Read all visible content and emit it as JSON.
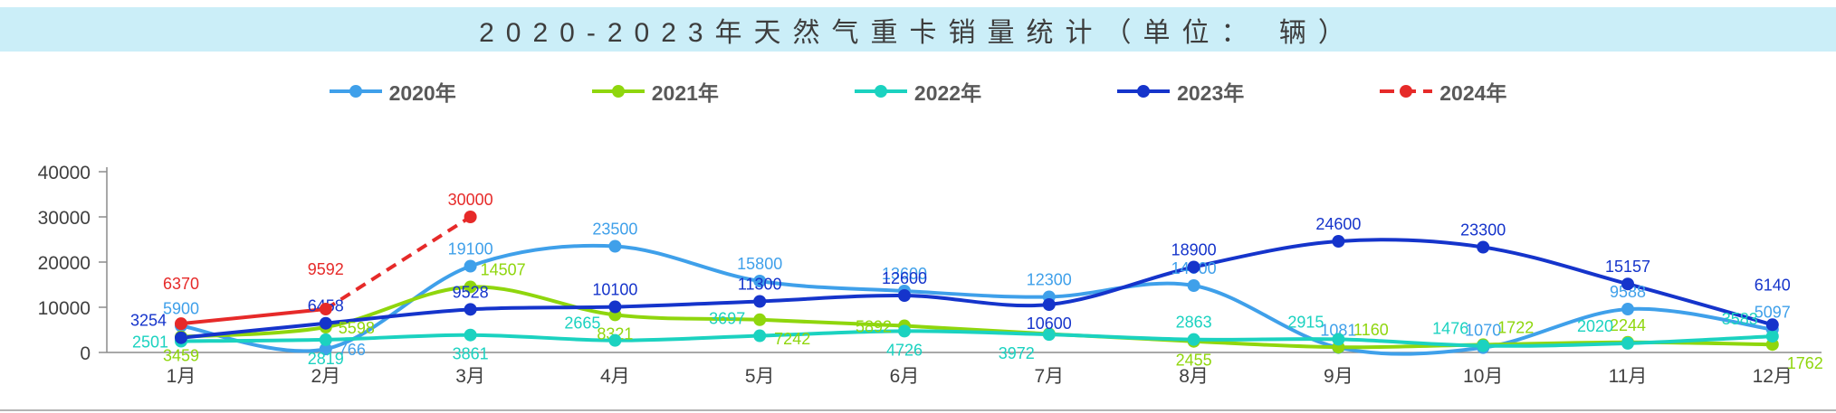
{
  "title": "2020-2023年天然气重卡销量统计（单位： 辆）",
  "chart_data": {
    "type": "line",
    "title": "2020-2023年天然气重卡销量统计（单位： 辆）",
    "unit": "辆",
    "categories": [
      "1月",
      "2月",
      "3月",
      "4月",
      "5月",
      "6月",
      "7月",
      "8月",
      "9月",
      "10月",
      "11月",
      "12月"
    ],
    "xlabel": "",
    "ylabel": "",
    "y_ticks": [
      "0",
      "10000",
      "20000",
      "30000",
      "40000"
    ],
    "ylim": [
      0,
      40000
    ],
    "grid": false,
    "smooth": true,
    "legend_position": "top",
    "series": [
      {
        "name": "2020年",
        "color": "#3fa0ea",
        "values": [
          5900,
          766,
          19100,
          23500,
          15800,
          13600,
          12300,
          14800,
          1081,
          1070,
          9588,
          5097
        ],
        "labels": [
          "5900",
          "766",
          "19100",
          "23500",
          "15800",
          "13600",
          "12300",
          "14800",
          "1081",
          "1070",
          "9588",
          "5097"
        ],
        "label_pos": [
          "top",
          "right",
          "top",
          "top",
          "top",
          "top",
          "top",
          "top",
          "top",
          "top",
          "top",
          "top"
        ]
      },
      {
        "name": "2021年",
        "color": "#8fd60d",
        "values": [
          3459,
          5598,
          14507,
          8321,
          7242,
          5892,
          4100,
          2455,
          1160,
          1722,
          2244,
          1762
        ],
        "labels": [
          "3459",
          "5598",
          "14507",
          "8321",
          "7242",
          "5892",
          "",
          "2455",
          "1160",
          "1722",
          "2244",
          "1762"
        ],
        "label_pos": [
          "bottom",
          "right",
          "top-right",
          "bottom",
          "bottom-right",
          "left",
          "top",
          "bottom",
          "top-right",
          "top-right",
          "top",
          "bottom-right"
        ]
      },
      {
        "name": "2022年",
        "color": "#1bd2c0",
        "values": [
          2501,
          2819,
          3861,
          2665,
          3697,
          4726,
          3972,
          2863,
          2915,
          1476,
          2020,
          3583
        ],
        "labels": [
          "2501",
          "2819",
          "3861",
          "2665",
          "3697",
          "4726",
          "3972",
          "2863",
          "2915",
          "1476",
          "2020",
          "3583"
        ],
        "label_pos": [
          "left",
          "bottom",
          "bottom",
          "top-left",
          "top-left",
          "bottom",
          "bottom-left",
          "top",
          "top-left",
          "top-left",
          "top-left",
          "top-left"
        ]
      },
      {
        "name": "2023年",
        "color": "#1534cb",
        "values": [
          3254,
          6458,
          9528,
          10100,
          11300,
          12600,
          10600,
          18900,
          24600,
          23300,
          15157,
          6140
        ],
        "labels": [
          "3254",
          "6458",
          "9528",
          "10100",
          "11300",
          "12600",
          "10600",
          "18900",
          "24600",
          "23300",
          "15157",
          "6140"
        ],
        "label_pos": [
          "top-left",
          "top",
          "top",
          "top",
          "top",
          "top",
          "bottom",
          "top",
          "top",
          "top",
          "top",
          "top-high"
        ]
      },
      {
        "name": "2024年",
        "color": "#e62a29",
        "values": [
          6370,
          9592,
          30000
        ],
        "labels": [
          "6370",
          "9592",
          "30000"
        ],
        "label_pos": [
          "top-high",
          "top-high",
          "top"
        ],
        "dashed_from": 1
      }
    ]
  }
}
